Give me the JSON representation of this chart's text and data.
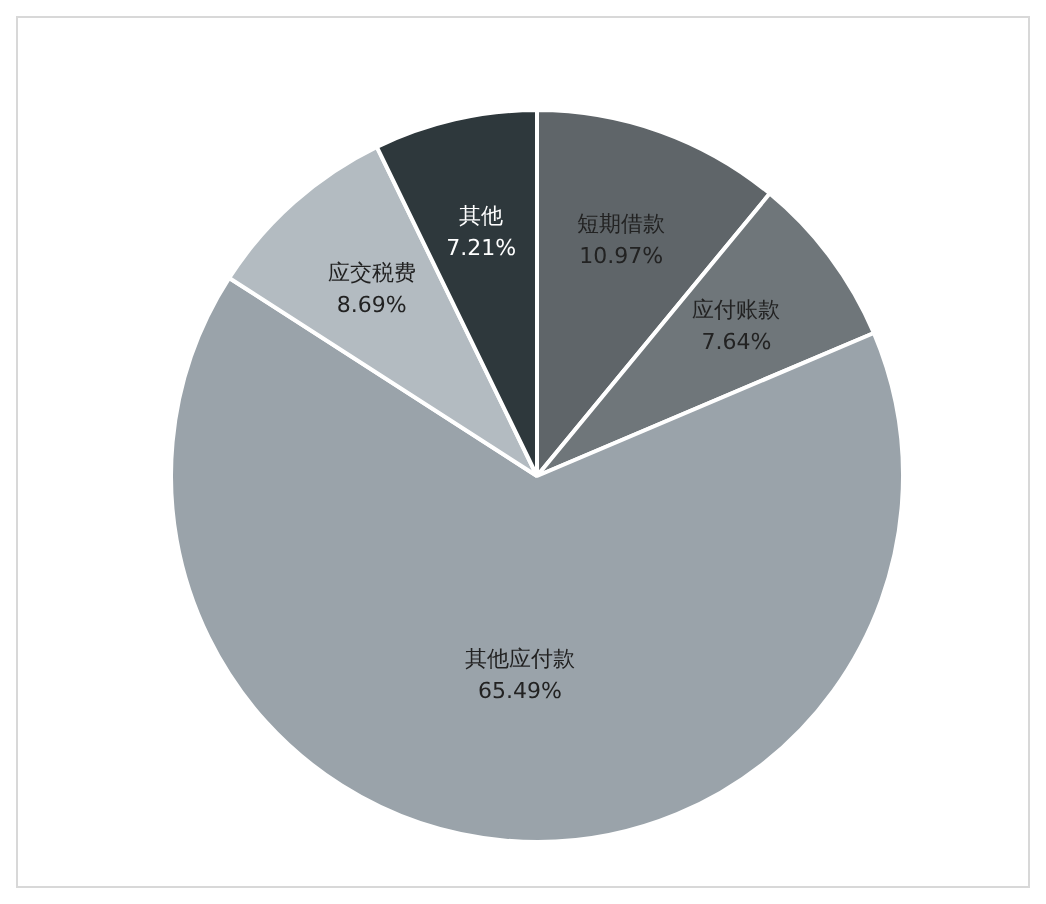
{
  "chart_data": {
    "type": "pie",
    "categories": [
      "短期借款",
      "应付账款",
      "其他应付款",
      "应交税费",
      "其他"
    ],
    "values": [
      10.97,
      7.64,
      65.49,
      8.69,
      7.21
    ],
    "value_labels": [
      "10.97%",
      "7.64%",
      "65.49%",
      "8.69%",
      "7.21%"
    ],
    "colors": [
      "#5f6569",
      "#6f767a",
      "#9aa3aa",
      "#b3bbc1",
      "#2e383c"
    ],
    "legend": false
  }
}
